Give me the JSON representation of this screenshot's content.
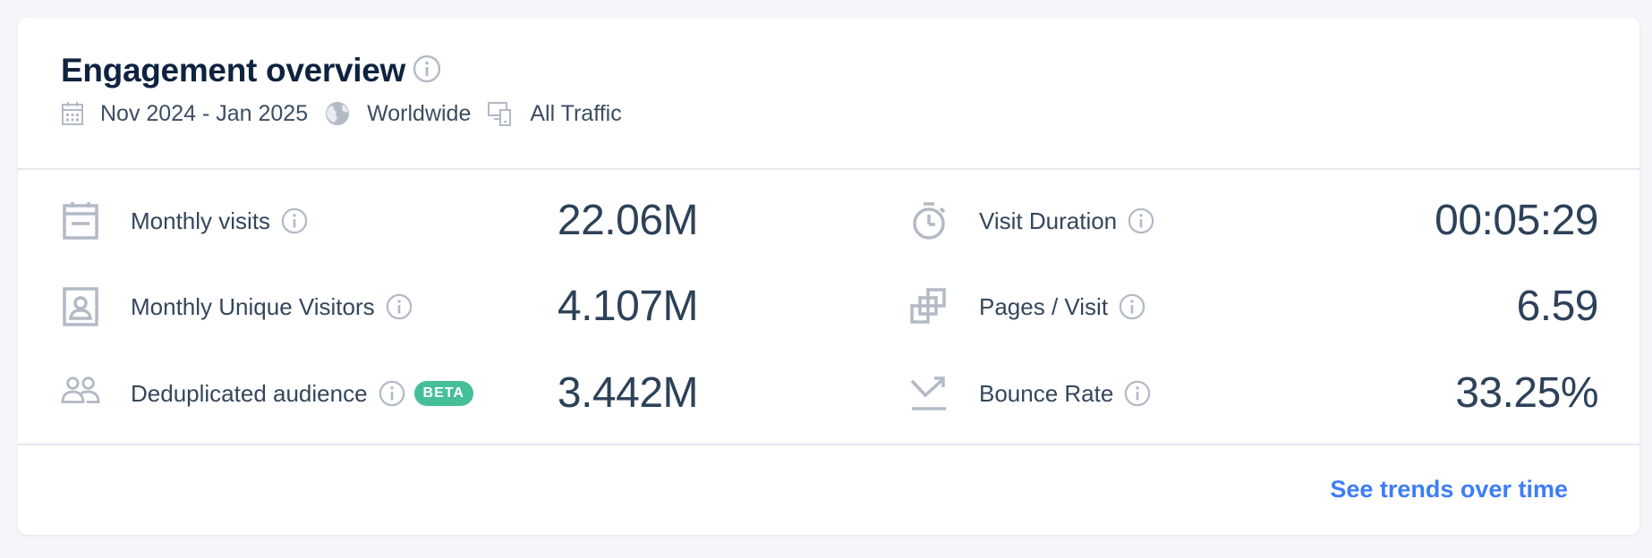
{
  "header": {
    "title": "Engagement overview",
    "date_range": "Nov 2024 - Jan 2025",
    "region": "Worldwide",
    "traffic": "All Traffic"
  },
  "metrics_left": [
    {
      "label": "Monthly visits",
      "value": "22.06M",
      "icon": "calendar-icon"
    },
    {
      "label": "Monthly Unique Visitors",
      "value": "4.107M",
      "icon": "user-card-icon"
    },
    {
      "label": "Deduplicated audience",
      "value": "3.442M",
      "icon": "people-icon",
      "badge": "BETA"
    }
  ],
  "metrics_right": [
    {
      "label": "Visit Duration",
      "value": "00:05:29",
      "icon": "stopwatch-icon"
    },
    {
      "label": "Pages / Visit",
      "value": "6.59",
      "icon": "pages-icon"
    },
    {
      "label": "Bounce Rate",
      "value": "33.25%",
      "icon": "bounce-icon"
    }
  ],
  "footer": {
    "link_label": "See trends over time"
  },
  "colors": {
    "accent": "#3e7df5",
    "badge": "#45bf98",
    "title": "#0f2340",
    "icon": "#b3bac6"
  }
}
